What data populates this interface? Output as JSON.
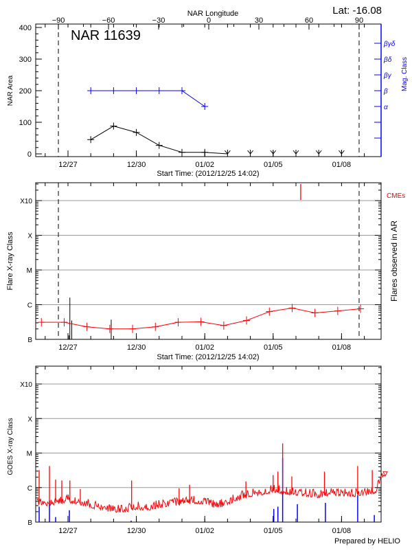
{
  "start_time": "2012-12-25T14:02",
  "colors": {
    "area": "#000000",
    "mag_class": "#0000ff",
    "flare": "#ff0000",
    "cme": "#ff0000",
    "goes": "#ff0000",
    "goes_events": "#0000ff",
    "grid": "#999999"
  },
  "footer": "Prepared by HELIO",
  "chart_data": [
    {
      "type": "line",
      "title": "NAR 11639",
      "lat_label": "Lat: -16.08",
      "xlabel": "Start Time: (2012/12/25 14:02)",
      "ylabel": "NAR Area",
      "y2label": "Mag. Class",
      "top_xlabel": "NAR Longitude",
      "ylim": [
        0,
        400
      ],
      "yticks": [
        "0",
        "100",
        "200",
        "300",
        "400"
      ],
      "xticks": [
        "12/27",
        "12/30",
        "01/02",
        "01/05",
        "01/08"
      ],
      "xtick_dates": [
        "2012-12-27",
        "2012-12-30",
        "2013-01-02",
        "2013-01-05",
        "2013-01-08"
      ],
      "top_xticks": [
        "-90",
        "-60",
        "-30",
        "0",
        "30",
        "60",
        "90"
      ],
      "limb_longitudes": [
        -90,
        90
      ],
      "mag_class_ticks": [
        {
          "label": "",
          "area_level": 50
        },
        {
          "label": "",
          "area_level": 100
        },
        {
          "label": "α",
          "area_level": 150
        },
        {
          "label": "β",
          "area_level": 200
        },
        {
          "label": "βγ",
          "area_level": 250
        },
        {
          "label": "βδ",
          "area_level": 300
        },
        {
          "label": "βγδ",
          "area_level": 350
        }
      ],
      "series": [
        {
          "name": "NAR Area",
          "x": [
            "2012-12-28",
            "2012-12-29",
            "2012-12-30",
            "2012-12-31",
            "2013-01-01",
            "2013-01-02",
            "2013-01-03"
          ],
          "values": [
            45,
            88,
            68,
            27,
            5,
            5,
            0
          ]
        },
        {
          "name": "Mag. Class",
          "x": [
            "2012-12-28",
            "2012-12-29",
            "2012-12-30",
            "2012-12-31",
            "2013-01-01",
            "2013-01-02"
          ],
          "values": [
            "β",
            "β",
            "β",
            "β",
            "β",
            "α"
          ]
        }
      ],
      "no_data_markers": [
        "2013-01-03",
        "2013-01-04",
        "2013-01-05",
        "2013-01-06",
        "2013-01-07",
        "2013-01-08"
      ]
    },
    {
      "type": "line",
      "xlabel": "Start Time: (2012/12/25 14:02)",
      "ylabel": "Flare X-ray Class",
      "y2label": "Flares observed in AR",
      "cme_label": "CMEs",
      "yscale": "log",
      "ylim": [
        1e-07,
        0.002
      ],
      "yticks": [
        {
          "label": "B",
          "value": 1e-07
        },
        {
          "label": "C",
          "value": 1e-06
        },
        {
          "label": "M",
          "value": 1e-05
        },
        {
          "label": "X",
          "value": 0.0001
        },
        {
          "label": "X10",
          "value": 0.001
        }
      ],
      "xticks": [
        "12/27",
        "12/30",
        "01/02",
        "01/05",
        "01/08"
      ],
      "grid": true,
      "series": [
        {
          "x": [
            "2012-12-25T20:00",
            "2012-12-26T20:00",
            "2012-12-27T20:00",
            "2012-12-28T20:00",
            "2012-12-29T20:00",
            "2012-12-30T20:00",
            "2012-12-31T20:00",
            "2013-01-01T20:00",
            "2013-01-02T20:00",
            "2013-01-03T20:00",
            "2013-01-04T20:00",
            "2013-01-05T20:00",
            "2013-01-06T20:00",
            "2013-01-07T20:00",
            "2013-01-08T20:00"
          ],
          "values": [
            3.1e-07,
            3.1e-07,
            2.3e-07,
            2e-07,
            2e-07,
            2.3e-07,
            3.1e-07,
            3.2e-07,
            2.5e-07,
            3.5e-07,
            6.3e-07,
            8e-07,
            5.8e-07,
            6.6e-07,
            7.6e-07
          ]
        }
      ],
      "flares": [
        {
          "time": "2012-12-27T01:00",
          "value": 1.3e-07
        },
        {
          "time": "2012-12-27T02:00",
          "value": 1.6e-06
        },
        {
          "time": "2012-12-27T04:00",
          "value": 3.5e-07
        },
        {
          "time": "2012-12-28T21:30",
          "value": 3.7e-07
        }
      ],
      "cmes": [
        "2013-01-06T05:00"
      ]
    },
    {
      "type": "line",
      "ylabel": "GOES X-ray Class",
      "yscale": "log",
      "ylim": [
        1e-07,
        0.002
      ],
      "yticks": [
        {
          "label": "B",
          "value": 1e-07
        },
        {
          "label": "C",
          "value": 1e-06
        },
        {
          "label": "M",
          "value": 1e-05
        },
        {
          "label": "X",
          "value": 0.0001
        },
        {
          "label": "X10",
          "value": 0.001
        }
      ],
      "xticks": [
        "12/27",
        "12/30",
        "01/02",
        "01/05",
        "01/08"
      ],
      "grid": true,
      "series": [
        {
          "x": [
            "2012-12-25T15:00",
            "2012-12-26T00:00",
            "2012-12-26T12:00",
            "2012-12-27T00:00",
            "2012-12-27T12:00",
            "2012-12-28T00:00",
            "2012-12-28T12:00",
            "2012-12-29T00:00",
            "2012-12-29T12:00",
            "2012-12-30T00:00",
            "2012-12-30T12:00",
            "2012-12-31T00:00",
            "2012-12-31T12:00",
            "2013-01-01T00:00",
            "2013-01-01T12:00",
            "2013-01-02T00:00",
            "2013-01-02T12:00",
            "2013-01-03T00:00",
            "2013-01-03T12:00",
            "2013-01-04T00:00",
            "2013-01-04T12:00",
            "2013-01-05T00:00",
            "2013-01-05T12:00",
            "2013-01-06T00:00",
            "2013-01-06T12:00",
            "2013-01-07T00:00",
            "2013-01-07T12:00",
            "2013-01-08T00:00",
            "2013-01-08T12:00",
            "2013-01-09T00:00",
            "2013-01-09T12:00",
            "2013-01-09T22:00"
          ],
          "values": [
            3.5e-07,
            3e-07,
            3.6e-07,
            4e-07,
            3.5e-07,
            2.8e-07,
            2.3e-07,
            2.1e-07,
            2.1e-07,
            2.5e-07,
            2.4e-07,
            2.8e-07,
            3.2e-07,
            3.4e-07,
            3.8e-07,
            3.6e-07,
            2.7e-07,
            3.3e-07,
            4.8e-07,
            6e-07,
            6.6e-07,
            8e-07,
            7e-07,
            6.3e-07,
            6e-07,
            5.5e-07,
            6.5e-07,
            6.3e-07,
            6e-07,
            6.5e-07,
            7.5e-07,
            2.5e-06
          ]
        }
      ],
      "peaks": [
        {
          "time": "2012-12-25T17:40",
          "value": 3.2e-06
        },
        {
          "time": "2012-12-26T04:30",
          "value": 4.2e-06
        },
        {
          "time": "2012-12-26T11:00",
          "value": 1.7e-06
        },
        {
          "time": "2012-12-26T17:30",
          "value": 1.6e-06
        },
        {
          "time": "2012-12-27T02:00",
          "value": 1.6e-06
        },
        {
          "time": "2012-12-27T13:00",
          "value": 9e-07
        },
        {
          "time": "2012-12-29T19:00",
          "value": 1.6e-06
        },
        {
          "time": "2012-12-31T21:00",
          "value": 9.5e-07
        },
        {
          "time": "2013-01-01T08:00",
          "value": 1.2e-06
        },
        {
          "time": "2013-01-03T19:20",
          "value": 1.5e-06
        },
        {
          "time": "2013-01-05T00:00",
          "value": 2.3e-06
        },
        {
          "time": "2013-01-05T05:00",
          "value": 2.9e-06
        },
        {
          "time": "2013-01-05T10:00",
          "value": 1.9e-05
        },
        {
          "time": "2013-01-05T19:40",
          "value": 2.1e-06
        },
        {
          "time": "2013-01-07T06:00",
          "value": 2.9e-06
        },
        {
          "time": "2013-01-08T17:00",
          "value": 4.2e-06
        },
        {
          "time": "2013-01-09T08:20",
          "value": 3.2e-06
        }
      ],
      "events": [
        {
          "time": "2012-12-25T17:40",
          "value": 2.8e-07
        },
        {
          "time": "2012-12-26T04:30",
          "value": 4.2e-07
        },
        {
          "time": "2012-12-26T11:00",
          "value": 1.4e-07
        },
        {
          "time": "2012-12-27T01:30",
          "value": 2.2e-07
        },
        {
          "time": "2012-12-29T18:30",
          "value": 1.1e-07
        },
        {
          "time": "2013-01-05T00:40",
          "value": 2.4e-07
        },
        {
          "time": "2013-01-05T05:00",
          "value": 2.8e-07
        },
        {
          "time": "2013-01-05T10:00",
          "value": 7.2e-06
        },
        {
          "time": "2013-01-06T01:30",
          "value": 3.3e-07
        },
        {
          "time": "2013-01-07T07:00",
          "value": 3.6e-07
        },
        {
          "time": "2013-01-08T17:00",
          "value": 6e-07
        },
        {
          "time": "2013-01-09T10:30",
          "value": 1.6e-07
        }
      ]
    }
  ]
}
